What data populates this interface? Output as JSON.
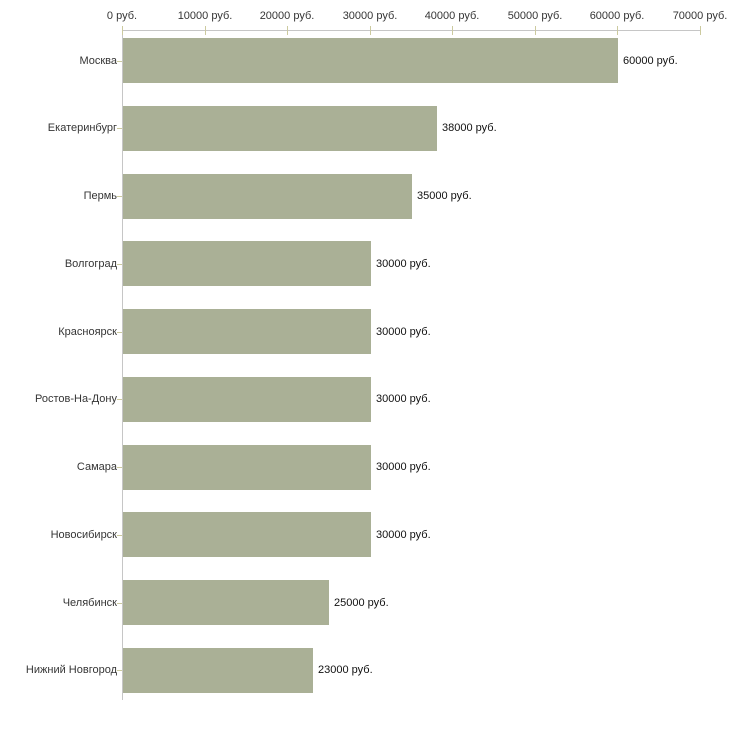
{
  "chart_data": {
    "type": "bar",
    "orientation": "horizontal",
    "title": "",
    "xlabel": "",
    "ylabel": "",
    "categories": [
      "Москва",
      "Екатеринбург",
      "Пермь",
      "Волгоград",
      "Красноярск",
      "Ростов-На-Дону",
      "Самара",
      "Новосибирск",
      "Челябинск",
      "Нижний Новгород"
    ],
    "values": [
      60000,
      38000,
      35000,
      30000,
      30000,
      30000,
      30000,
      30000,
      25000,
      23000
    ],
    "value_labels": [
      "60000 руб.",
      "38000 руб.",
      "35000 руб.",
      "30000 руб.",
      "30000 руб.",
      "30000 руб.",
      "30000 руб.",
      "30000 руб.",
      "25000 руб.",
      "23000 руб."
    ],
    "x_axis": {
      "position": "top",
      "min": 0,
      "max": 70000,
      "tick_values": [
        0,
        10000,
        20000,
        30000,
        40000,
        50000,
        60000,
        70000
      ],
      "tick_labels": [
        "0 руб.",
        "10000 руб.",
        "20000 руб.",
        "30000 руб.",
        "40000 руб.",
        "50000 руб.",
        "60000 руб.",
        "70000 руб."
      ]
    },
    "legend": null,
    "grid": false,
    "colors": {
      "bar_fill": "#aab096",
      "axis_line": "#c6c6c6",
      "tick_mark": "#ccca9f",
      "tick_label_text": "#353535",
      "category_label_text": "#353535",
      "value_label_text": "#111111",
      "background": "#ffffff"
    }
  }
}
